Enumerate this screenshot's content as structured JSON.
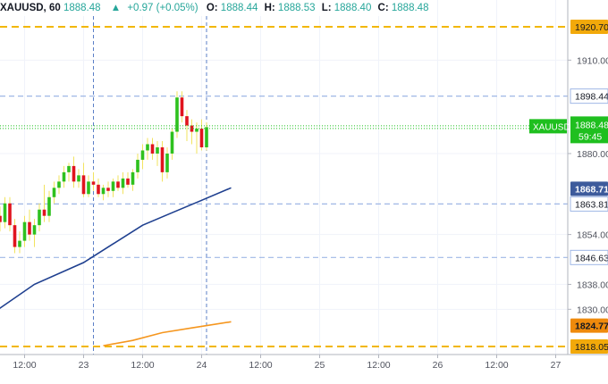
{
  "header": {
    "symbol": "XAUUSD, 60",
    "last": "1888.48",
    "change": "+0.97 (+0.05%)",
    "open_label": "O:",
    "open": "1888.44",
    "high_label": "H:",
    "high": "1888.53",
    "low_label": "L:",
    "low": "1888.40",
    "close_label": "C:",
    "close": "1888.48"
  },
  "colors": {
    "up": "#2ec11e",
    "down": "#e0141e",
    "wick": "#f2e35f",
    "blue_ma": "#1e3f8f",
    "orange_ma": "#f5961e",
    "level_orange": "#f2b705",
    "level_blue": "#9fb7e6",
    "current_green": "#1fbf1f",
    "tag_blue": "#3d5b9c",
    "tag_orange": "#ef8a0c"
  },
  "chart_data": {
    "type": "candlestick",
    "symbol": "XAUUSD",
    "interval": "60",
    "y_axis": {
      "range": [
        1812,
        1928
      ],
      "ticks": [
        1910.0,
        1880.0,
        1854.0,
        1838.0,
        1830.0
      ],
      "tick_labels": [
        "1910.00",
        "1880.00",
        "1854.00",
        "1838.00",
        "1830.00"
      ]
    },
    "x_axis": {
      "tick_labels": [
        "12:00",
        "23",
        "12:00",
        "24",
        "12:00",
        "25",
        "12:00",
        "26",
        "12:00",
        "27"
      ],
      "tick_hours": [
        -12,
        0,
        12,
        24,
        36,
        48,
        60,
        72,
        84,
        96
      ]
    },
    "horizontal_levels": [
      {
        "value": 1920.7,
        "label": "1920.70",
        "style": "orange-dash"
      },
      {
        "value": 1898.44,
        "label": "1898.44",
        "style": "blue-dash"
      },
      {
        "value": 1863.81,
        "label": "1863.81",
        "style": "blue-dash"
      },
      {
        "value": 1846.63,
        "label": "1846.63",
        "style": "blue-dash"
      },
      {
        "value": 1818.05,
        "label": "1818.05",
        "style": "orange-dash"
      }
    ],
    "current_price": {
      "value": 1888.48,
      "symbol_label": "XAUUSD",
      "price_label": "1888.48",
      "countdown": "59:45"
    },
    "moving_averages": [
      {
        "color_key": "blue_ma",
        "tag": "1868.71",
        "tag_value": 1868.71,
        "points": [
          [
            -21,
            1826
          ],
          [
            -10,
            1838
          ],
          [
            0,
            1845
          ],
          [
            6,
            1851
          ],
          [
            12,
            1857
          ],
          [
            18,
            1861
          ],
          [
            24,
            1865
          ],
          [
            30,
            1869
          ]
        ]
      },
      {
        "color_key": "orange_ma",
        "tag": "1824.77",
        "tag_value": 1824.77,
        "points": [
          [
            4,
            1818.3
          ],
          [
            10,
            1820
          ],
          [
            16,
            1822.5
          ],
          [
            22,
            1824
          ],
          [
            30,
            1826
          ]
        ]
      }
    ],
    "vertical_markers_hours": [
      2,
      25
    ],
    "candles": [
      {
        "t": -21,
        "o": 1858,
        "h": 1862,
        "l": 1852,
        "c": 1855
      },
      {
        "t": -20,
        "o": 1854,
        "h": 1858,
        "l": 1849,
        "c": 1852
      },
      {
        "t": -19,
        "o": 1852,
        "h": 1868,
        "l": 1850,
        "c": 1866
      },
      {
        "t": -18,
        "o": 1865,
        "h": 1867,
        "l": 1858,
        "c": 1860
      },
      {
        "t": -17,
        "o": 1860,
        "h": 1863,
        "l": 1855,
        "c": 1858
      },
      {
        "t": -16,
        "o": 1858,
        "h": 1866,
        "l": 1856,
        "c": 1864
      },
      {
        "t": -15,
        "o": 1864,
        "h": 1866,
        "l": 1855,
        "c": 1857
      },
      {
        "t": -14,
        "o": 1857,
        "h": 1859,
        "l": 1848,
        "c": 1850
      },
      {
        "t": -13,
        "o": 1850,
        "h": 1855,
        "l": 1848,
        "c": 1852
      },
      {
        "t": -12,
        "o": 1852,
        "h": 1860,
        "l": 1850,
        "c": 1858
      },
      {
        "t": -11,
        "o": 1858,
        "h": 1862,
        "l": 1852,
        "c": 1854
      },
      {
        "t": -10,
        "o": 1854,
        "h": 1859,
        "l": 1850,
        "c": 1857
      },
      {
        "t": -9,
        "o": 1857,
        "h": 1864,
        "l": 1855,
        "c": 1862
      },
      {
        "t": -8,
        "o": 1862,
        "h": 1870,
        "l": 1858,
        "c": 1860
      },
      {
        "t": -7,
        "o": 1860,
        "h": 1868,
        "l": 1858,
        "c": 1866
      },
      {
        "t": -6,
        "o": 1866,
        "h": 1871,
        "l": 1864,
        "c": 1869
      },
      {
        "t": -5,
        "o": 1869,
        "h": 1873,
        "l": 1867,
        "c": 1871
      },
      {
        "t": -4,
        "o": 1871,
        "h": 1876,
        "l": 1869,
        "c": 1874
      },
      {
        "t": -3,
        "o": 1874,
        "h": 1877,
        "l": 1871,
        "c": 1876
      },
      {
        "t": -2,
        "o": 1876,
        "h": 1879,
        "l": 1869,
        "c": 1871
      },
      {
        "t": -1,
        "o": 1871,
        "h": 1875,
        "l": 1869,
        "c": 1873
      },
      {
        "t": 0,
        "o": 1873,
        "h": 1877,
        "l": 1866,
        "c": 1867
      },
      {
        "t": 1,
        "o": 1867,
        "h": 1873,
        "l": 1866,
        "c": 1871
      },
      {
        "t": 2,
        "o": 1871,
        "h": 1874,
        "l": 1868,
        "c": 1870
      },
      {
        "t": 3,
        "o": 1870,
        "h": 1872,
        "l": 1866,
        "c": 1867
      },
      {
        "t": 4,
        "o": 1867,
        "h": 1870,
        "l": 1865,
        "c": 1869
      },
      {
        "t": 5,
        "o": 1869,
        "h": 1871,
        "l": 1866,
        "c": 1868
      },
      {
        "t": 6,
        "o": 1868,
        "h": 1872,
        "l": 1866,
        "c": 1871
      },
      {
        "t": 7,
        "o": 1871,
        "h": 1873,
        "l": 1868,
        "c": 1869
      },
      {
        "t": 8,
        "o": 1869,
        "h": 1874,
        "l": 1867,
        "c": 1872
      },
      {
        "t": 9,
        "o": 1872,
        "h": 1874,
        "l": 1869,
        "c": 1870
      },
      {
        "t": 10,
        "o": 1870,
        "h": 1875,
        "l": 1868,
        "c": 1874
      },
      {
        "t": 11,
        "o": 1874,
        "h": 1880,
        "l": 1872,
        "c": 1878
      },
      {
        "t": 12,
        "o": 1878,
        "h": 1883,
        "l": 1875,
        "c": 1881
      },
      {
        "t": 13,
        "o": 1881,
        "h": 1885,
        "l": 1878,
        "c": 1883
      },
      {
        "t": 14,
        "o": 1883,
        "h": 1885,
        "l": 1878,
        "c": 1880
      },
      {
        "t": 15,
        "o": 1880,
        "h": 1884,
        "l": 1876,
        "c": 1882
      },
      {
        "t": 16,
        "o": 1882,
        "h": 1884,
        "l": 1871,
        "c": 1874
      },
      {
        "t": 17,
        "o": 1874,
        "h": 1882,
        "l": 1872,
        "c": 1880
      },
      {
        "t": 18,
        "o": 1880,
        "h": 1888,
        "l": 1878,
        "c": 1887
      },
      {
        "t": 19,
        "o": 1887,
        "h": 1900,
        "l": 1885,
        "c": 1898
      },
      {
        "t": 20,
        "o": 1898,
        "h": 1900,
        "l": 1890,
        "c": 1892
      },
      {
        "t": 21,
        "o": 1892,
        "h": 1894,
        "l": 1884,
        "c": 1889
      },
      {
        "t": 22,
        "o": 1889,
        "h": 1891,
        "l": 1883,
        "c": 1887
      },
      {
        "t": 23,
        "o": 1887,
        "h": 1890,
        "l": 1880,
        "c": 1888
      },
      {
        "t": 24,
        "o": 1888,
        "h": 1891,
        "l": 1881,
        "c": 1882
      },
      {
        "t": 25,
        "o": 1882,
        "h": 1890,
        "l": 1881,
        "c": 1888.48
      }
    ]
  }
}
